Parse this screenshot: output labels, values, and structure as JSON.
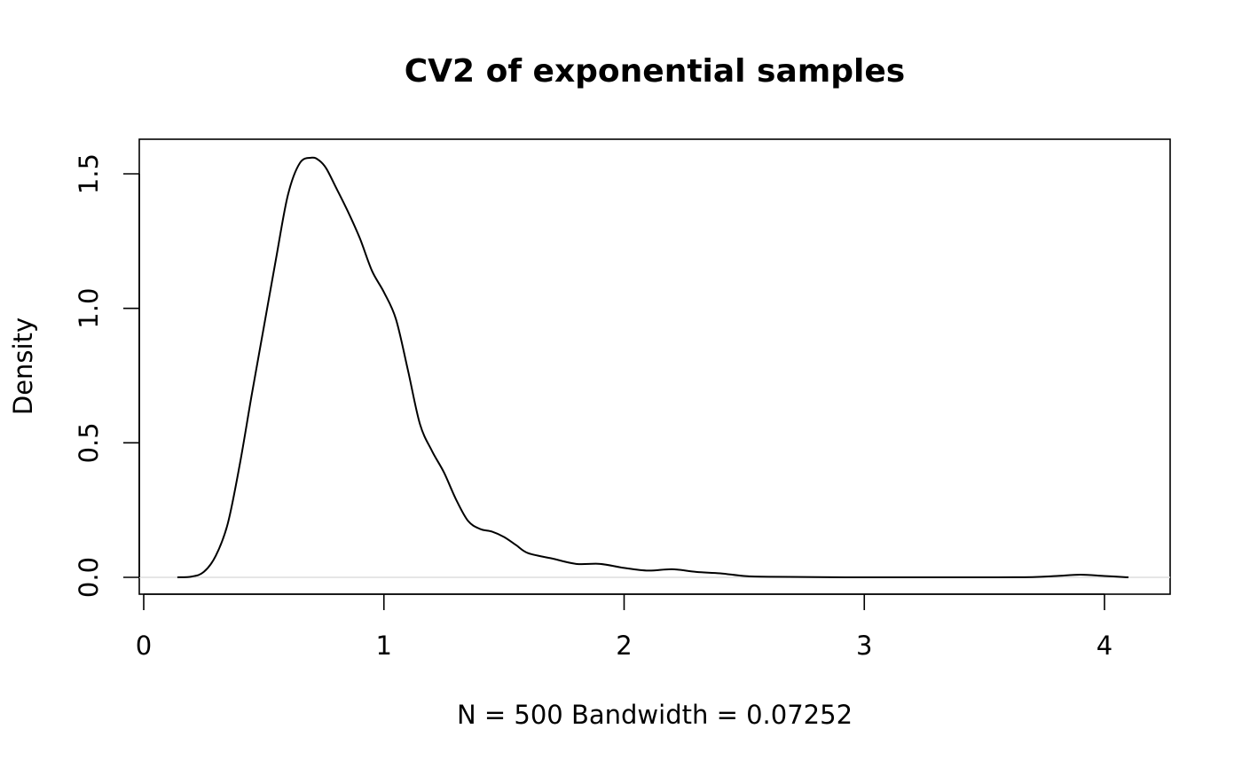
{
  "chart_data": {
    "type": "line",
    "title": "CV2 of exponential samples",
    "xlabel": "N = 500   Bandwidth = 0.07252",
    "ylabel": "Density",
    "xlim": [
      0,
      4.2
    ],
    "ylim": [
      0,
      1.6
    ],
    "xticks": [
      0,
      1,
      2,
      3,
      4
    ],
    "xtick_labels": [
      "0",
      "1",
      "2",
      "3",
      "4"
    ],
    "yticks": [
      0,
      0.5,
      1,
      1.5
    ],
    "ytick_labels": [
      "0.0",
      "0.5",
      "1.0",
      "1.5"
    ],
    "grid": false,
    "zero_line": true,
    "series": [
      {
        "color": "#000000",
        "x": [
          0.14,
          0.2,
          0.25,
          0.3,
          0.35,
          0.4,
          0.45,
          0.5,
          0.55,
          0.6,
          0.65,
          0.7,
          0.73,
          0.76,
          0.8,
          0.85,
          0.9,
          0.95,
          1.0,
          1.05,
          1.1,
          1.15,
          1.2,
          1.25,
          1.3,
          1.35,
          1.4,
          1.45,
          1.5,
          1.55,
          1.6,
          1.7,
          1.8,
          1.9,
          2.0,
          2.1,
          2.2,
          2.3,
          2.4,
          2.5,
          2.6,
          3.0,
          3.5,
          3.7,
          3.8,
          3.9,
          4.0,
          4.1
        ],
        "y": [
          0.0,
          0.003,
          0.02,
          0.08,
          0.2,
          0.42,
          0.68,
          0.93,
          1.18,
          1.42,
          1.54,
          1.56,
          1.55,
          1.52,
          1.45,
          1.36,
          1.26,
          1.14,
          1.06,
          0.96,
          0.77,
          0.57,
          0.47,
          0.39,
          0.29,
          0.21,
          0.18,
          0.17,
          0.15,
          0.12,
          0.09,
          0.07,
          0.05,
          0.05,
          0.035,
          0.025,
          0.03,
          0.02,
          0.015,
          0.005,
          0.002,
          0.0,
          0.0,
          0.001,
          0.005,
          0.01,
          0.005,
          0.0
        ]
      }
    ]
  }
}
